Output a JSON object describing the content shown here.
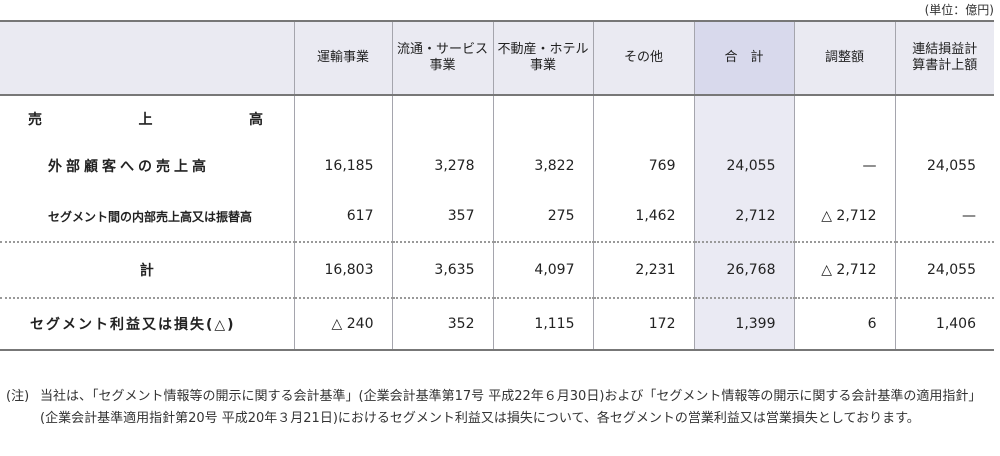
{
  "unit": "(単位：億円)",
  "headers": {
    "transport": "運輸事業",
    "distribution": "流通・サービス事業",
    "realestate": "不動産・ホテル事業",
    "other": "その他",
    "total": "合　計",
    "adjustment": "調整額",
    "consolidated": "連結損益計算書計上額"
  },
  "rows": {
    "sales_title": "売上高",
    "external": {
      "label": "外部顧客への売上高",
      "values": [
        "16,185",
        "3,278",
        "3,822",
        "769",
        "24,055",
        "—",
        "24,055"
      ]
    },
    "internal": {
      "label": "セグメント間の内部売上高又は振替高",
      "values": [
        "617",
        "357",
        "275",
        "1,462",
        "2,712",
        "△ 2,712",
        "—"
      ]
    },
    "total": {
      "label": "計",
      "values": [
        "16,803",
        "3,635",
        "4,097",
        "2,231",
        "26,768",
        "△ 2,712",
        "24,055"
      ]
    },
    "profit": {
      "label": "セグメント利益又は損失(△)",
      "values": [
        "△ 240",
        "352",
        "1,115",
        "172",
        "1,399",
        "6",
        "1,406"
      ]
    }
  },
  "note": {
    "mark": "(注)",
    "text": "当社は、「セグメント情報等の開示に関する会計基準」(企業会計基準第17号 平成22年６月30日)および「セグメント情報等の開示に関する会計基準の適用指針」(企業会計基準適用指針第20号 平成20年３月21日)におけるセグメント利益又は損失について、各セグメントの営業利益又は営業損失としております。"
  }
}
